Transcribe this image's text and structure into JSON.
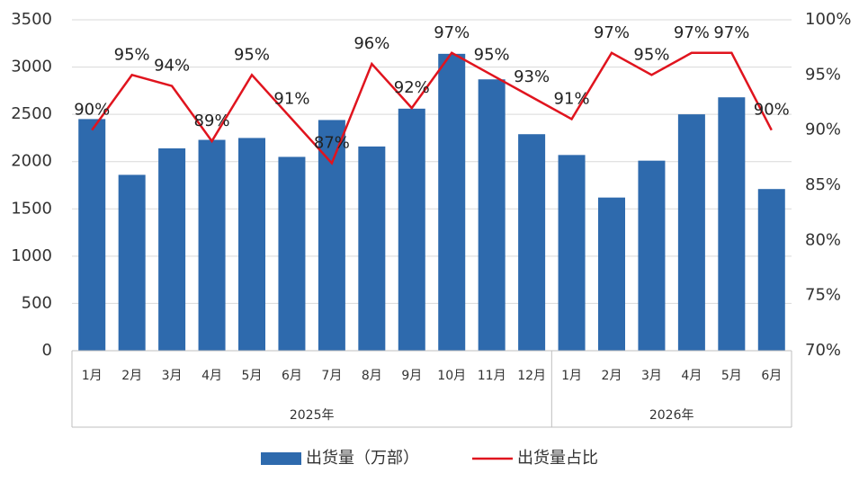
{
  "chart_data": {
    "type": "bar-line",
    "categories": [
      "1月",
      "2月",
      "3月",
      "4月",
      "5月",
      "6月",
      "7月",
      "8月",
      "9月",
      "10月",
      "11月",
      "12月",
      "1月",
      "2月",
      "3月",
      "4月",
      "5月",
      "6月"
    ],
    "groups": [
      {
        "label": "2025年",
        "size": 12
      },
      {
        "label": "2026年",
        "size": 6
      }
    ],
    "series": [
      {
        "name": "出货量（万部）",
        "type": "bar",
        "color": "#2e6aad",
        "values": [
          2450,
          1860,
          2140,
          2230,
          2250,
          2050,
          2440,
          2160,
          2560,
          3140,
          2870,
          2290,
          2070,
          1620,
          2010,
          2500,
          2680,
          1710
        ]
      },
      {
        "name": "出货量占比",
        "type": "line",
        "axis": "y2",
        "color": "#e0141e",
        "values": [
          90,
          95,
          94,
          89,
          95,
          91,
          87,
          96,
          92,
          97,
          95,
          93,
          91,
          97,
          95,
          97,
          97,
          90
        ],
        "value_labels": [
          "90%",
          "95%",
          "94%",
          "89%",
          "95%",
          "91%",
          "87%",
          "96%",
          "92%",
          "97%",
          "95%",
          "93%",
          "91%",
          "97%",
          "95%",
          "97%",
          "97%",
          "90%"
        ]
      }
    ],
    "ylim": [
      0,
      3500
    ],
    "yticks": [
      0,
      500,
      1000,
      1500,
      2000,
      2500,
      3000,
      3500
    ],
    "y2lim": [
      70,
      100
    ],
    "y2ticks": [
      {
        "value": 70,
        "label": "70%"
      },
      {
        "value": 75,
        "label": "75%"
      },
      {
        "value": 80,
        "label": "80%"
      },
      {
        "value": 85,
        "label": "85%"
      },
      {
        "value": 90,
        "label": "90%"
      },
      {
        "value": 95,
        "label": "95%"
      },
      {
        "value": 100,
        "label": "100%"
      }
    ],
    "grid": true,
    "legend": "bottom"
  }
}
